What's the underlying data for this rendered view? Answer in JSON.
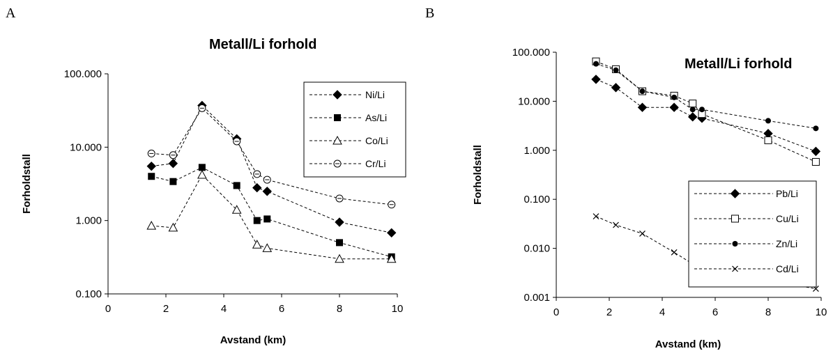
{
  "panels": {
    "A": {
      "letter": "A"
    },
    "B": {
      "letter": "B"
    }
  },
  "chart_data": [
    {
      "type": "line",
      "panel": "A",
      "title": "Metall/Li forhold",
      "xlabel": "Avstand (km)",
      "ylabel": "Forholdstall",
      "x_scale": "linear",
      "y_scale": "log",
      "xlim": [
        0,
        10
      ],
      "ylim": [
        0.1,
        100
      ],
      "x_ticks": [
        "0",
        "2",
        "4",
        "6",
        "8",
        "10"
      ],
      "y_ticks": [
        "0.100",
        "1.000",
        "10.000",
        "100.000"
      ],
      "grid": false,
      "legend_position": "top-right",
      "x": [
        1.5,
        2.25,
        3.25,
        4.45,
        5.15,
        5.5,
        8.0,
        9.8
      ],
      "series": [
        {
          "name": "Ni/Li",
          "marker": "diamond-filled",
          "values": [
            5.5,
            6.0,
            37,
            13,
            2.8,
            2.5,
            0.95,
            0.68
          ]
        },
        {
          "name": "As/Li",
          "marker": "square-filled",
          "values": [
            4.0,
            3.4,
            5.3,
            3.0,
            1.0,
            1.05,
            0.5,
            0.32
          ]
        },
        {
          "name": "Co/Li",
          "marker": "triangle-open",
          "values": [
            0.85,
            0.8,
            4.2,
            1.4,
            0.47,
            0.42,
            0.3,
            0.3
          ]
        },
        {
          "name": "Cr/Li",
          "marker": "circle-open-dot",
          "values": [
            8.2,
            7.8,
            34,
            12,
            4.3,
            3.6,
            2.0,
            1.65
          ]
        }
      ]
    },
    {
      "type": "line",
      "panel": "B",
      "title": "Metall/Li forhold",
      "xlabel": "Avstand (km)",
      "ylabel": "Forholdstall",
      "x_scale": "linear",
      "y_scale": "log",
      "xlim": [
        0,
        10
      ],
      "ylim": [
        0.001,
        100
      ],
      "x_ticks": [
        "0",
        "2",
        "4",
        "6",
        "8",
        "10"
      ],
      "y_ticks": [
        "0.001",
        "0.010",
        "0.100",
        "1.000",
        "10.000",
        "100.000"
      ],
      "grid": false,
      "legend_position": "right",
      "x": [
        1.5,
        2.25,
        3.25,
        4.45,
        5.15,
        5.5,
        8.0,
        9.8
      ],
      "series": [
        {
          "name": "Pb/Li",
          "marker": "diamond-filled",
          "values": [
            28,
            19,
            7.5,
            7.5,
            4.8,
            4.5,
            2.2,
            0.95
          ]
        },
        {
          "name": "Cu/Li",
          "marker": "square-open",
          "values": [
            65,
            45,
            16,
            13,
            9.0,
            5.5,
            1.6,
            0.58
          ]
        },
        {
          "name": "Zn/Li",
          "marker": "circle-filled",
          "values": [
            58,
            43,
            16,
            12,
            6.8,
            6.8,
            4.0,
            2.8
          ]
        },
        {
          "name": "Cd/Li",
          "marker": "x",
          "values": [
            0.045,
            0.03,
            0.02,
            0.0083,
            0.0048,
            0.0048,
            0.0022,
            0.0015
          ]
        }
      ]
    }
  ]
}
